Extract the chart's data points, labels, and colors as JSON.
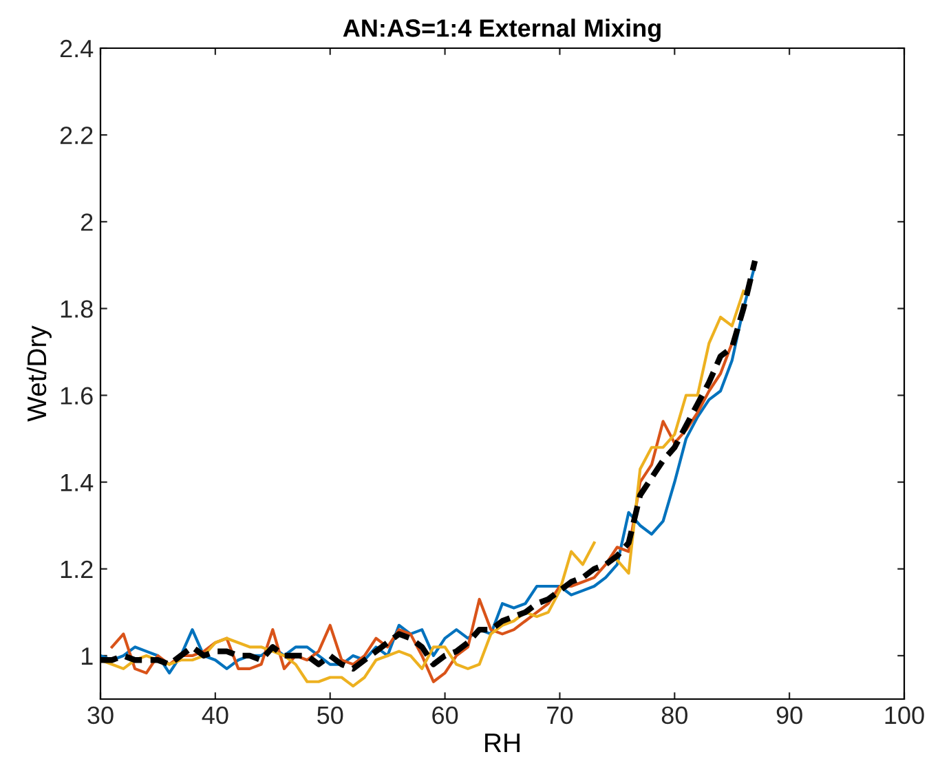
{
  "chart_data": {
    "type": "line",
    "title": "AN:AS=1:4 External Mixing",
    "xlabel": "RH",
    "ylabel": "Wet/Dry",
    "xlim": [
      30,
      100
    ],
    "xticks": [
      30,
      40,
      50,
      60,
      70,
      80,
      90,
      100
    ],
    "ylim": [
      0.9,
      2.4
    ],
    "yticks": [
      1,
      1.2,
      1.4,
      1.6,
      1.8,
      2,
      2.2,
      2.4
    ],
    "grid": false,
    "series": [
      {
        "color": "#0072bd",
        "x": [
          30,
          31,
          32,
          33,
          34,
          35,
          36,
          37,
          38,
          39,
          40,
          41,
          42,
          43,
          44,
          45,
          46,
          47,
          48,
          49,
          50,
          51,
          52,
          53,
          54,
          55,
          56,
          57,
          58,
          59,
          60,
          61,
          62,
          63,
          64,
          65,
          66,
          67,
          68,
          69,
          70,
          71,
          72,
          73,
          74,
          75,
          76,
          77,
          78,
          79,
          80,
          81,
          82,
          83,
          84,
          85,
          86,
          87
        ],
        "values": [
          1.0,
          0.99,
          1.0,
          1.02,
          1.01,
          1.0,
          0.96,
          1.0,
          1.06,
          1.0,
          0.99,
          0.97,
          0.99,
          1.0,
          1.0,
          1.02,
          1.0,
          1.02,
          1.02,
          1.0,
          0.98,
          0.98,
          1.0,
          0.99,
          1.02,
          1.0,
          1.07,
          1.05,
          1.06,
          1.0,
          1.04,
          1.06,
          1.04,
          1.06,
          1.05,
          1.12,
          1.11,
          1.12,
          1.16,
          1.16,
          1.16,
          1.14,
          1.15,
          1.16,
          1.18,
          1.21,
          1.33,
          1.3,
          1.28,
          1.31,
          1.4,
          1.5,
          1.55,
          1.59,
          1.61,
          1.68,
          1.8,
          1.9
        ]
      },
      {
        "color": "#d95319",
        "x": [
          31,
          32,
          33,
          34,
          35,
          36,
          37,
          38,
          39,
          40,
          41,
          42,
          43,
          44,
          45,
          46,
          47,
          48,
          49,
          50,
          51,
          52,
          53,
          54,
          55,
          56,
          57,
          58,
          59,
          60,
          61,
          62,
          63,
          64,
          65,
          66,
          67,
          68,
          69,
          70,
          71,
          72,
          73,
          74,
          75,
          76,
          77,
          78,
          79,
          80,
          81,
          82,
          83,
          84,
          85
        ],
        "values": [
          1.02,
          1.05,
          0.97,
          0.96,
          1.0,
          0.98,
          1.0,
          1.0,
          1.01,
          1.03,
          1.04,
          0.97,
          0.97,
          0.98,
          1.06,
          0.97,
          1.0,
          0.99,
          1.01,
          1.07,
          0.99,
          0.98,
          1.0,
          1.04,
          1.02,
          1.06,
          1.05,
          1.0,
          0.94,
          0.96,
          1.0,
          1.02,
          1.13,
          1.06,
          1.05,
          1.06,
          1.08,
          1.1,
          1.12,
          1.16,
          1.16,
          1.17,
          1.18,
          1.21,
          1.25,
          1.24,
          1.4,
          1.44,
          1.54,
          1.49,
          1.52,
          1.56,
          1.61,
          1.65,
          1.72
        ]
      },
      {
        "color": "#edb120",
        "x": [
          30,
          31,
          32,
          33,
          34,
          35,
          36,
          37,
          38,
          39,
          40,
          41,
          42,
          43,
          44,
          45,
          46,
          47,
          48,
          49,
          50,
          51,
          52,
          53,
          54,
          55,
          56,
          57,
          58,
          59,
          60,
          61,
          62,
          63,
          64,
          65,
          66,
          67,
          68,
          69,
          70,
          71,
          72,
          73,
          74,
          75,
          76,
          77,
          78,
          79,
          80,
          81,
          82,
          83,
          84,
          85,
          86
        ],
        "values": [
          0.99,
          0.98,
          0.97,
          0.99,
          1.0,
          0.99,
          0.98,
          0.99,
          0.99,
          1.0,
          1.03,
          1.04,
          1.03,
          1.02,
          1.02,
          1.01,
          1.0,
          0.98,
          0.94,
          0.94,
          0.95,
          0.95,
          0.93,
          0.95,
          0.99,
          1.0,
          1.01,
          1.0,
          0.97,
          1.02,
          1.02,
          0.98,
          0.97,
          0.98,
          1.05,
          1.07,
          1.08,
          1.1,
          1.09,
          1.1,
          1.15,
          1.24,
          1.21,
          1.26,
          null,
          1.22,
          1.19,
          1.43,
          1.48,
          1.48,
          1.51,
          1.6,
          1.6,
          1.72,
          1.78,
          1.76,
          1.84
        ]
      },
      {
        "color": "#000000",
        "line_style": "dashed",
        "x": [
          30,
          31,
          32,
          33,
          34,
          35,
          36,
          37,
          38,
          39,
          40,
          41,
          42,
          43,
          44,
          45,
          46,
          47,
          48,
          49,
          50,
          51,
          52,
          53,
          54,
          55,
          56,
          57,
          58,
          59,
          60,
          61,
          62,
          63,
          64,
          65,
          66,
          67,
          68,
          69,
          70,
          71,
          72,
          73,
          74,
          75,
          76,
          77,
          78,
          79,
          80,
          81,
          82,
          83,
          84,
          85,
          86,
          87
        ],
        "values": [
          0.99,
          0.99,
          1.0,
          0.99,
          0.99,
          0.99,
          0.98,
          1.0,
          1.02,
          1.0,
          1.01,
          1.01,
          1.0,
          1.0,
          0.99,
          1.02,
          1.0,
          1.0,
          1.0,
          0.98,
          1.0,
          0.98,
          0.97,
          0.99,
          1.01,
          1.03,
          1.05,
          1.04,
          1.02,
          0.98,
          1.0,
          1.01,
          1.03,
          1.06,
          1.06,
          1.08,
          1.09,
          1.1,
          1.12,
          1.13,
          1.15,
          1.17,
          1.18,
          1.2,
          1.21,
          1.23,
          1.26,
          1.37,
          1.41,
          1.45,
          1.48,
          1.53,
          1.58,
          1.63,
          1.69,
          1.71,
          1.8,
          1.91
        ]
      }
    ]
  }
}
